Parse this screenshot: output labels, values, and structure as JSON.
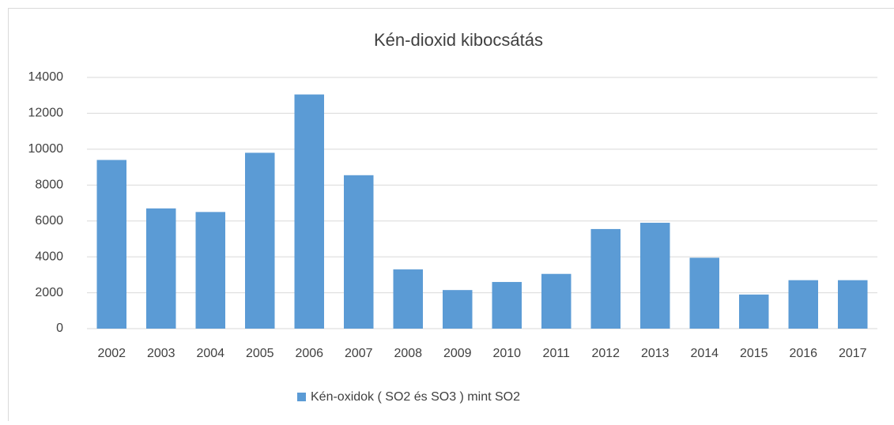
{
  "chart_data": {
    "type": "bar",
    "title": "Kén-dioxid kibocsátás",
    "categories": [
      "2002",
      "2003",
      "2004",
      "2005",
      "2006",
      "2007",
      "2008",
      "2009",
      "2010",
      "2011",
      "2012",
      "2013",
      "2014",
      "2015",
      "2016",
      "2017"
    ],
    "series": [
      {
        "name": "Kén-oxidok ( SO2 és SO3 ) mint SO2",
        "color": "#5b9bd5",
        "values": [
          9400,
          6700,
          6500,
          9800,
          13050,
          8550,
          3300,
          2150,
          2600,
          3050,
          5550,
          5900,
          3950,
          1900,
          2700,
          2700
        ]
      }
    ],
    "ylim": [
      0,
      14000
    ],
    "yticks": [
      0,
      2000,
      4000,
      6000,
      8000,
      10000,
      12000,
      14000
    ],
    "grid": true,
    "legend": "bottom"
  }
}
